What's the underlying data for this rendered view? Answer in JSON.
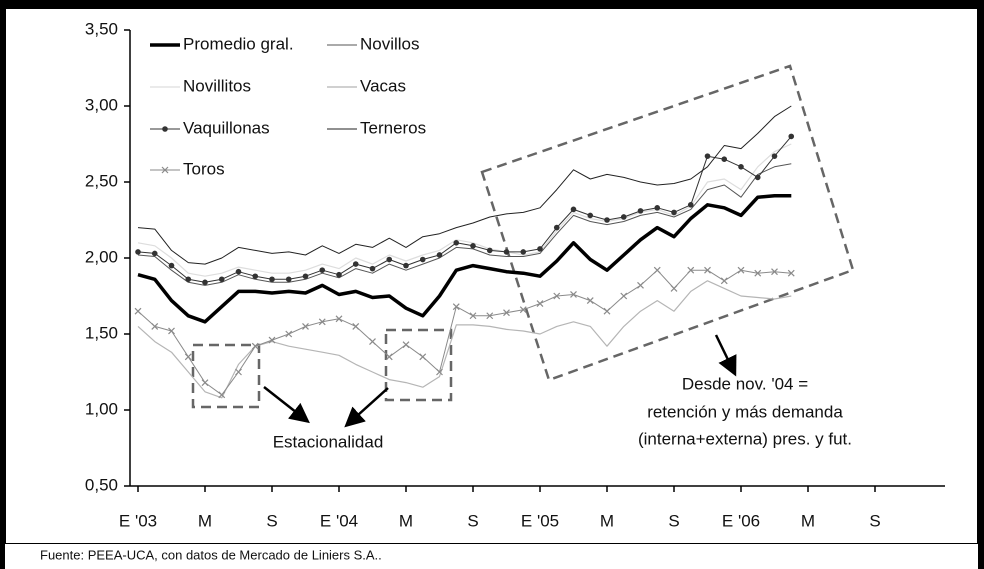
{
  "chart_data": {
    "type": "line",
    "categories": [
      "E '03",
      null,
      null,
      null,
      "M",
      null,
      null,
      null,
      "S",
      null,
      null,
      null,
      "E '04",
      null,
      null,
      null,
      "M",
      null,
      null,
      null,
      "S",
      null,
      null,
      null,
      "E '05",
      null,
      null,
      null,
      "M",
      null,
      null,
      null,
      "S",
      null,
      null,
      null,
      "E '06",
      null,
      null,
      null,
      "M",
      null,
      null,
      null,
      "S",
      null,
      null,
      null
    ],
    "ylim": [
      0.5,
      3.5
    ],
    "yticks": [
      {
        "value": 0.5,
        "label": "0,50"
      },
      {
        "value": 1.0,
        "label": "1,00"
      },
      {
        "value": 1.5,
        "label": "1,50"
      },
      {
        "value": 2.0,
        "label": "2,00"
      },
      {
        "value": 2.5,
        "label": "2,50"
      },
      {
        "value": 3.0,
        "label": "3,00"
      },
      {
        "value": 3.5,
        "label": "3,50"
      }
    ],
    "series": [
      {
        "name": "Promedio gral.",
        "color": "#000000",
        "width": 3.5,
        "values": [
          1.89,
          1.86,
          1.72,
          1.62,
          1.58,
          1.68,
          1.78,
          1.78,
          1.77,
          1.78,
          1.77,
          1.82,
          1.76,
          1.78,
          1.74,
          1.75,
          1.67,
          1.62,
          1.75,
          1.92,
          1.95,
          1.93,
          1.91,
          1.9,
          1.88,
          1.98,
          2.1,
          1.99,
          1.92,
          2.02,
          2.12,
          2.2,
          2.14,
          2.26,
          2.35,
          2.33,
          2.28,
          2.4,
          2.41,
          2.41,
          null,
          null,
          null,
          null,
          null,
          null,
          null,
          null
        ]
      },
      {
        "name": "Novillos",
        "color": "#555555",
        "width": 1,
        "values": [
          2.02,
          2.01,
          1.92,
          1.84,
          1.82,
          1.84,
          1.89,
          1.86,
          1.84,
          1.84,
          1.86,
          1.9,
          1.87,
          1.93,
          1.9,
          1.96,
          1.92,
          1.96,
          2.0,
          2.07,
          2.06,
          2.02,
          2.01,
          2.01,
          2.03,
          2.16,
          2.28,
          2.24,
          2.22,
          2.24,
          2.28,
          2.3,
          2.27,
          2.32,
          2.45,
          2.48,
          2.4,
          2.55,
          2.6,
          2.62,
          null,
          null,
          null,
          null,
          null,
          null,
          null,
          null
        ]
      },
      {
        "name": "Novillitos",
        "color": "#dddddd",
        "width": 1.2,
        "values": [
          2.1,
          2.08,
          2.0,
          1.9,
          1.88,
          1.9,
          1.94,
          1.92,
          1.9,
          1.9,
          1.92,
          1.96,
          1.93,
          2.0,
          1.96,
          2.02,
          1.98,
          2.02,
          2.05,
          2.12,
          2.1,
          2.06,
          2.04,
          2.02,
          2.04,
          2.18,
          2.3,
          2.26,
          2.24,
          2.26,
          2.3,
          2.32,
          2.28,
          2.34,
          2.5,
          2.52,
          2.45,
          2.6,
          2.7,
          2.75,
          null,
          null,
          null,
          null,
          null,
          null,
          null,
          null
        ]
      },
      {
        "name": "Vacas",
        "color": "#b5b5b5",
        "width": 1.2,
        "values": [
          1.55,
          1.45,
          1.38,
          1.25,
          1.12,
          1.08,
          1.3,
          1.42,
          1.45,
          1.42,
          1.4,
          1.38,
          1.36,
          1.3,
          1.25,
          1.2,
          1.18,
          1.15,
          1.22,
          1.56,
          1.56,
          1.55,
          1.53,
          1.52,
          1.5,
          1.55,
          1.58,
          1.55,
          1.42,
          1.55,
          1.65,
          1.72,
          1.65,
          1.78,
          1.85,
          1.8,
          1.75,
          1.74,
          1.73,
          1.75,
          null,
          null,
          null,
          null,
          null,
          null,
          null,
          null
        ]
      },
      {
        "name": "Vaquillonas",
        "color": "#333333",
        "width": 1,
        "marker": "dot",
        "values": [
          2.04,
          2.03,
          1.95,
          1.86,
          1.84,
          1.86,
          1.91,
          1.88,
          1.86,
          1.86,
          1.88,
          1.92,
          1.89,
          1.96,
          1.93,
          1.99,
          1.95,
          1.99,
          2.02,
          2.1,
          2.08,
          2.05,
          2.04,
          2.04,
          2.06,
          2.2,
          2.32,
          2.28,
          2.25,
          2.27,
          2.31,
          2.33,
          2.3,
          2.35,
          2.67,
          2.65,
          2.6,
          2.53,
          2.67,
          2.8,
          null,
          null,
          null,
          null,
          null,
          null,
          null,
          null
        ]
      },
      {
        "name": "Terneros",
        "color": "#222222",
        "width": 1,
        "values": [
          2.2,
          2.19,
          2.05,
          1.97,
          1.96,
          2.0,
          2.07,
          2.05,
          2.03,
          2.04,
          2.02,
          2.08,
          2.03,
          2.09,
          2.07,
          2.13,
          2.07,
          2.14,
          2.16,
          2.2,
          2.23,
          2.27,
          2.29,
          2.3,
          2.33,
          2.45,
          2.58,
          2.52,
          2.55,
          2.53,
          2.5,
          2.48,
          2.49,
          2.52,
          2.6,
          2.74,
          2.72,
          2.82,
          2.93,
          3.0,
          null,
          null,
          null,
          null,
          null,
          null,
          null,
          null
        ]
      },
      {
        "name": "Toros",
        "color": "#8a8a8a",
        "width": 1,
        "marker": "x",
        "values": [
          1.65,
          1.55,
          1.52,
          1.35,
          1.18,
          1.1,
          1.25,
          1.42,
          1.46,
          1.5,
          1.55,
          1.58,
          1.6,
          1.55,
          1.45,
          1.35,
          1.43,
          1.35,
          1.25,
          1.68,
          1.62,
          1.62,
          1.64,
          1.66,
          1.7,
          1.75,
          1.76,
          1.72,
          1.65,
          1.75,
          1.82,
          1.92,
          1.8,
          1.92,
          1.92,
          1.85,
          1.92,
          1.9,
          1.91,
          1.9,
          null,
          null,
          null,
          null,
          null,
          null,
          null,
          null
        ]
      }
    ],
    "annotations": [
      "Estacionalidad",
      "Desde nov. '04 =",
      "retención y más demanda",
      "(interna+externa) pres. y fut."
    ],
    "source": "Fuente: PEEA-UCA, con datos de Mercado de Liniers S.A.."
  }
}
